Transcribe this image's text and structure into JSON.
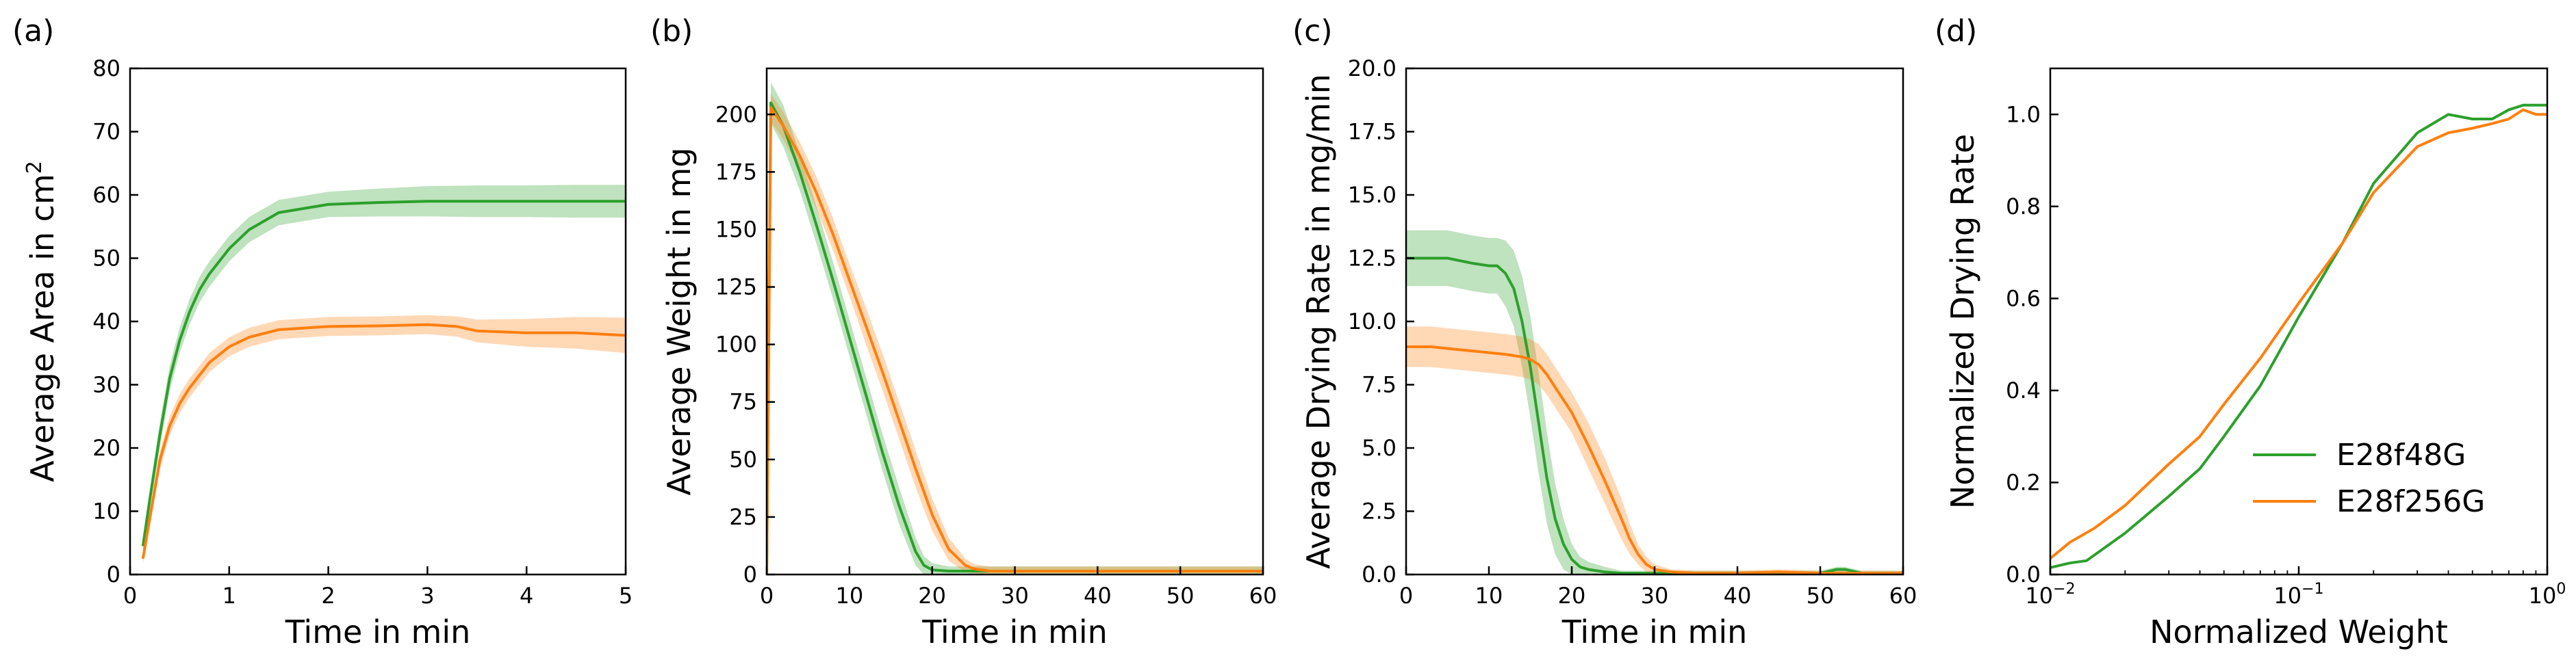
{
  "figure": {
    "colors": {
      "E28f48G": "#2ca02c",
      "E28f256G": "#ff7f0e",
      "axis": "#000000"
    }
  },
  "chart_data": [
    {
      "panel": "(a)",
      "type": "line",
      "xlabel": "Time in min",
      "ylabel": "Average Area in cm",
      "ylabel_superscript": "2",
      "xlim": [
        0,
        5
      ],
      "ylim": [
        0,
        80
      ],
      "xticks": [
        0,
        1,
        2,
        3,
        4,
        5
      ],
      "xtick_labels": [
        "0",
        "1",
        "2",
        "3",
        "4",
        "5"
      ],
      "yticks": [
        0,
        10,
        20,
        30,
        40,
        50,
        60,
        70,
        80
      ],
      "ytick_labels": [
        "0",
        "10",
        "20",
        "30",
        "40",
        "50",
        "60",
        "70",
        "80"
      ],
      "xscale": "linear",
      "legend": null,
      "series": [
        {
          "name": "E28f48G",
          "color": "#2ca02c",
          "x": [
            0.13,
            0.2,
            0.3,
            0.4,
            0.5,
            0.6,
            0.7,
            0.8,
            1.0,
            1.2,
            1.5,
            2.0,
            2.5,
            3.0,
            3.5,
            4.0,
            4.5,
            5.0
          ],
          "y": [
            4.5,
            12,
            22,
            31,
            37,
            41.5,
            45,
            47.5,
            51.5,
            54.5,
            57.2,
            58.5,
            58.8,
            59,
            59,
            59,
            59,
            59
          ],
          "band": [
            1.0,
            1.5,
            2.0,
            2.0,
            2.0,
            2.0,
            2.0,
            2.0,
            2.0,
            2.0,
            2.0,
            2.0,
            2.2,
            2.4,
            2.5,
            2.5,
            2.6,
            2.6
          ]
        },
        {
          "name": "E28f256G",
          "color": "#ff7f0e",
          "x": [
            0.13,
            0.2,
            0.3,
            0.4,
            0.5,
            0.6,
            0.8,
            1.0,
            1.2,
            1.5,
            2.0,
            2.5,
            3.0,
            3.3,
            3.5,
            4.0,
            4.5,
            5.0
          ],
          "y": [
            2.5,
            9,
            18,
            23.5,
            27,
            29.5,
            33.5,
            36,
            37.5,
            38.7,
            39.2,
            39.3,
            39.5,
            39.2,
            38.5,
            38.2,
            38.2,
            37.8
          ],
          "band": [
            0.8,
            1.2,
            1.5,
            1.5,
            1.5,
            1.5,
            1.5,
            1.5,
            1.5,
            1.5,
            1.5,
            1.5,
            1.5,
            1.6,
            1.8,
            2.2,
            2.5,
            2.8
          ]
        }
      ]
    },
    {
      "panel": "(b)",
      "type": "line",
      "xlabel": "Time in min",
      "ylabel": "Average Weight in mg",
      "xlim": [
        0,
        60
      ],
      "ylim": [
        0,
        220
      ],
      "xticks": [
        0,
        10,
        20,
        30,
        40,
        50,
        60
      ],
      "xtick_labels": [
        "0",
        "10",
        "20",
        "30",
        "40",
        "50",
        "60"
      ],
      "yticks": [
        0,
        25,
        50,
        75,
        100,
        125,
        150,
        175,
        200
      ],
      "ytick_labels": [
        "0",
        "25",
        "50",
        "75",
        "100",
        "125",
        "150",
        "175",
        "200"
      ],
      "xscale": "linear",
      "legend": null,
      "series": [
        {
          "name": "E28f48G",
          "color": "#2ca02c",
          "x": [
            0,
            0.5,
            2,
            4,
            6,
            8,
            10,
            12,
            14,
            16,
            18,
            19,
            20,
            22,
            25,
            30,
            40,
            50,
            60
          ],
          "y": [
            0,
            205,
            195,
            175,
            152,
            128,
            103,
            78,
            53,
            30,
            10,
            4,
            2,
            1.5,
            1.5,
            1.5,
            1.5,
            1.5,
            1.5
          ],
          "band": [
            0,
            9,
            9,
            8,
            8,
            8,
            8,
            8,
            8,
            8,
            6,
            4,
            3,
            2,
            2,
            2,
            2,
            2,
            2
          ]
        },
        {
          "name": "E28f256G",
          "color": "#ff7f0e",
          "x": [
            0,
            0.5,
            2,
            4,
            6,
            8,
            10,
            12,
            14,
            16,
            18,
            20,
            22,
            24,
            25,
            27,
            30,
            40,
            50,
            60
          ],
          "y": [
            0,
            203,
            195,
            182,
            166,
            148,
            128,
            108,
            88,
            67,
            46,
            26,
            11,
            4,
            2.5,
            1.5,
            1.5,
            1.5,
            1.5,
            1.5
          ],
          "band": [
            0,
            6,
            6,
            6,
            7,
            7,
            7,
            8,
            8,
            8,
            8,
            7,
            5,
            3,
            2,
            2,
            2,
            2,
            2,
            2
          ]
        }
      ]
    },
    {
      "panel": "(c)",
      "type": "line",
      "xlabel": "Time in min",
      "ylabel": "Average Drying Rate in mg/min",
      "xlim": [
        0,
        60
      ],
      "ylim": [
        0,
        20
      ],
      "xticks": [
        0,
        10,
        20,
        30,
        40,
        50,
        60
      ],
      "xtick_labels": [
        "0",
        "10",
        "20",
        "30",
        "40",
        "50",
        "60"
      ],
      "yticks": [
        0,
        2.5,
        5,
        7.5,
        10,
        12.5,
        15,
        17.5,
        20
      ],
      "ytick_labels": [
        "0.0",
        "2.5",
        "5.0",
        "7.5",
        "10.0",
        "12.5",
        "15.0",
        "17.5",
        "20.0"
      ],
      "xscale": "linear",
      "legend": null,
      "series": [
        {
          "name": "E28f48G",
          "color": "#2ca02c",
          "x": [
            0,
            2,
            5,
            8,
            10,
            11,
            12,
            13,
            14,
            15,
            16,
            17,
            18,
            19,
            20,
            21,
            22,
            24,
            26,
            30,
            40,
            50,
            52,
            53,
            55,
            60
          ],
          "y": [
            12.5,
            12.5,
            12.5,
            12.3,
            12.2,
            12.2,
            11.9,
            11.3,
            10.0,
            8.2,
            6.0,
            3.8,
            2.2,
            1.2,
            0.6,
            0.3,
            0.2,
            0.1,
            0.05,
            0.05,
            0.05,
            0.05,
            0.2,
            0.2,
            0.05,
            0.05
          ],
          "band": [
            1.1,
            1.1,
            1.1,
            1.1,
            1.1,
            1.1,
            1.3,
            1.5,
            1.8,
            2.0,
            2.0,
            1.8,
            1.4,
            1.0,
            0.6,
            0.4,
            0.3,
            0.2,
            0.1,
            0.1,
            0.1,
            0.1,
            0.1,
            0.1,
            0.1,
            0.1
          ]
        },
        {
          "name": "E28f256G",
          "color": "#ff7f0e",
          "x": [
            0,
            3,
            6,
            9,
            12,
            14,
            15,
            16,
            17,
            18,
            20,
            22,
            24,
            26,
            27,
            28,
            29,
            30,
            32,
            35,
            40,
            45,
            50,
            60
          ],
          "y": [
            9.0,
            9.0,
            8.9,
            8.8,
            8.7,
            8.6,
            8.5,
            8.3,
            7.9,
            7.4,
            6.4,
            5.1,
            3.7,
            2.2,
            1.4,
            0.8,
            0.4,
            0.2,
            0.1,
            0.05,
            0.05,
            0.1,
            0.05,
            0.05
          ],
          "band": [
            0.8,
            0.8,
            0.8,
            0.8,
            0.8,
            0.8,
            0.8,
            0.8,
            0.8,
            0.8,
            0.8,
            0.9,
            0.9,
            0.8,
            0.6,
            0.4,
            0.3,
            0.2,
            0.1,
            0.1,
            0.1,
            0.1,
            0.1,
            0.1
          ]
        }
      ]
    },
    {
      "panel": "(d)",
      "type": "line",
      "xlabel": "Normalized Weight",
      "ylabel": "Normalized Drying Rate",
      "xlim": [
        0.01,
        1
      ],
      "ylim": [
        0,
        1.1
      ],
      "xscale": "log",
      "xticks": [
        0.01,
        0.1,
        1
      ],
      "xtick_labels": [
        "10",
        "10",
        "10"
      ],
      "xtick_exponents": [
        "−2",
        "−1",
        "0"
      ],
      "yticks": [
        0,
        0.2,
        0.4,
        0.6,
        0.8,
        1.0
      ],
      "ytick_labels": [
        "0.0",
        "0.2",
        "0.4",
        "0.6",
        "0.8",
        "1.0"
      ],
      "legend": {
        "position": "lower-right",
        "entries": [
          "E28f48G",
          "E28f256G"
        ]
      },
      "series": [
        {
          "name": "E28f48G",
          "color": "#2ca02c",
          "x": [
            0.01,
            0.012,
            0.014,
            0.02,
            0.03,
            0.04,
            0.05,
            0.07,
            0.1,
            0.15,
            0.2,
            0.3,
            0.4,
            0.5,
            0.6,
            0.7,
            0.8,
            0.9,
            1.0
          ],
          "y": [
            0.015,
            0.025,
            0.03,
            0.09,
            0.17,
            0.23,
            0.3,
            0.41,
            0.56,
            0.72,
            0.85,
            0.96,
            1.0,
            0.99,
            0.99,
            1.01,
            1.02,
            1.02,
            1.02
          ]
        },
        {
          "name": "E28f256G",
          "color": "#ff7f0e",
          "x": [
            0.01,
            0.012,
            0.015,
            0.02,
            0.03,
            0.04,
            0.05,
            0.07,
            0.1,
            0.15,
            0.2,
            0.3,
            0.4,
            0.5,
            0.6,
            0.7,
            0.8,
            0.9,
            1.0
          ],
          "y": [
            0.035,
            0.07,
            0.1,
            0.15,
            0.24,
            0.3,
            0.37,
            0.47,
            0.59,
            0.72,
            0.83,
            0.93,
            0.96,
            0.97,
            0.98,
            0.99,
            1.01,
            1.0,
            1.0
          ]
        }
      ]
    }
  ]
}
